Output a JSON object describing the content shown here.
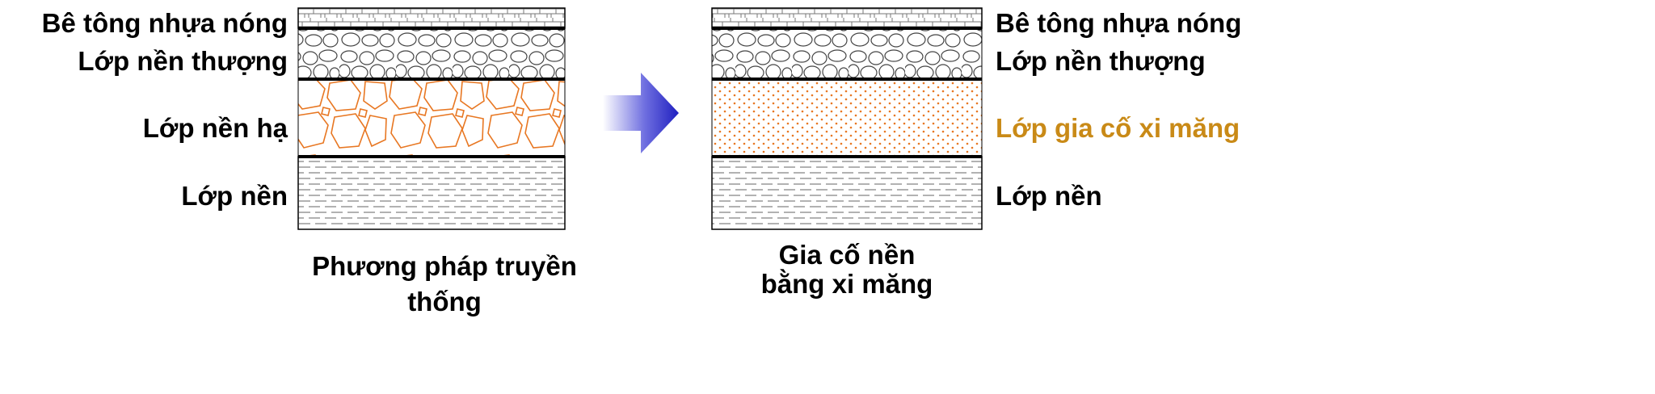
{
  "left": {
    "layers": [
      "Bê tông nhựa nóng",
      "Lớp nền thượng",
      "Lớp nền hạ",
      "Lớp nền"
    ],
    "caption": "Phương pháp truyền thống"
  },
  "right": {
    "layers": [
      "Bê tông nhựa nóng",
      "Lớp nền thượng",
      "Lớp gia cố xi măng",
      "Lớp nền"
    ],
    "caption_line1": "Gia cố nền",
    "caption_line2": "bằng xi măng"
  },
  "colors": {
    "orange_layer": "#e87722",
    "highlight_text": "#c98a17",
    "arrow": "#2a2ac8",
    "line": "#000000",
    "hatch": "#555555"
  },
  "icons": {
    "arrow": "right-arrow-icon"
  }
}
